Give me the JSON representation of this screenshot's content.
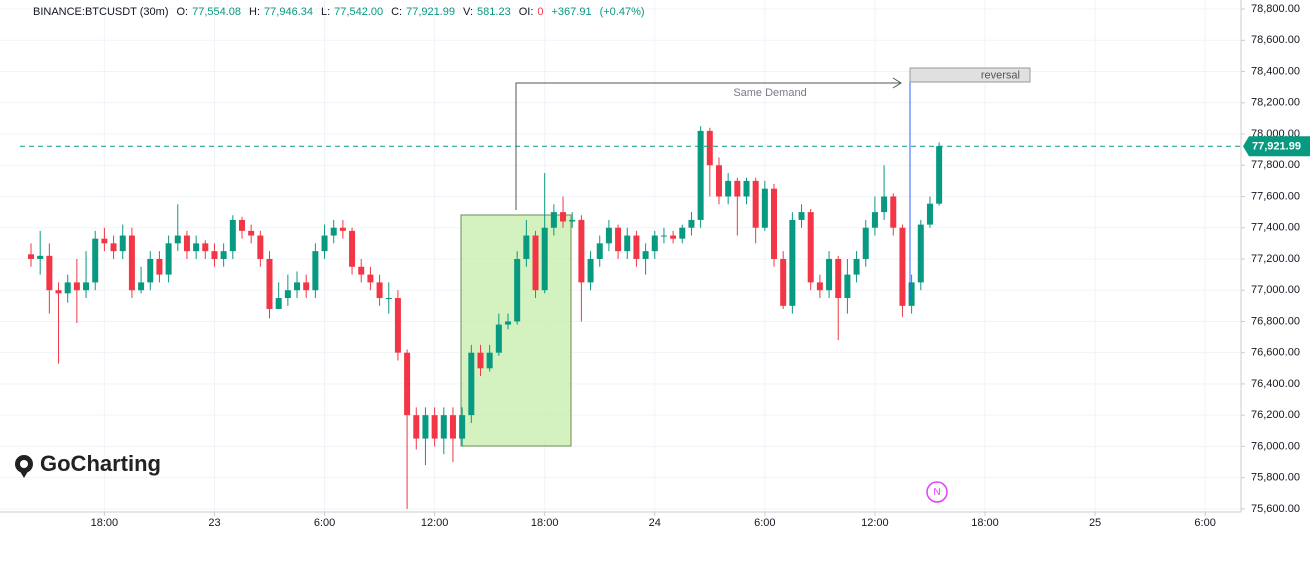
{
  "chart_data": {
    "type": "candlestick",
    "title": "BINANCE:BTCUSDT (30m)",
    "legend": [
      {
        "label": "O:",
        "value": "77,554.08"
      },
      {
        "label": "H:",
        "value": "77,946.34"
      },
      {
        "label": "L:",
        "value": "77,542.00"
      },
      {
        "label": "C:",
        "value": "77,921.99"
      },
      {
        "label": "V:",
        "value": "581.23"
      },
      {
        "label": "OI:",
        "value": "0"
      },
      {
        "label": "",
        "value": "+367.91"
      },
      {
        "label": "",
        "value": "(+0.47%)"
      }
    ],
    "up_color": "#089981",
    "down_color": "#f23645",
    "open": [
      77230,
      77200,
      77220,
      77000,
      76980,
      77050,
      77000,
      77050,
      77330,
      77300,
      77250,
      77350,
      77000,
      77050,
      77200,
      77100,
      77300,
      77350,
      77250,
      77300,
      77250,
      77200,
      77250,
      77450,
      77380,
      77350,
      77200,
      76880,
      76950,
      77000,
      77050,
      77000,
      77250,
      77350,
      77400,
      77380,
      77150,
      77100,
      77050,
      76950,
      76950,
      76600,
      76200,
      76050,
      76200,
      76050,
      76200,
      76050,
      76200,
      76600,
      76500,
      76600,
      76780,
      76800,
      77200,
      77350,
      77000,
      77400,
      77500,
      77440,
      77450,
      77050,
      77200,
      77300,
      77400,
      77250,
      77350,
      77200,
      77250,
      77350,
      77350,
      77330,
      77400,
      77450,
      78020,
      77800,
      77600,
      77700,
      77600,
      77700,
      77400,
      77650,
      77200,
      76900,
      77450,
      77500,
      77050,
      77000,
      77200,
      76950,
      77100,
      77200,
      77400,
      77500,
      77600,
      77400,
      76900,
      77050,
      77420,
      77554.08
    ],
    "high": [
      77300,
      77380,
      77300,
      77050,
      77100,
      77200,
      77250,
      77380,
      77400,
      77350,
      77420,
      77400,
      77150,
      77250,
      77250,
      77350,
      77550,
      77380,
      77350,
      77320,
      77300,
      77300,
      77480,
      77470,
      77420,
      77380,
      77250,
      77050,
      77100,
      77120,
      77100,
      77300,
      77420,
      77450,
      77450,
      77400,
      77200,
      77150,
      77100,
      77050,
      77000,
      76620,
      76250,
      76250,
      76250,
      76250,
      76250,
      76250,
      76650,
      76650,
      76650,
      76850,
      76850,
      77250,
      77450,
      77380,
      77750,
      77550,
      77600,
      77500,
      77480,
      77250,
      77350,
      77450,
      77420,
      77400,
      77380,
      77300,
      77380,
      77400,
      77380,
      77420,
      77500,
      78050,
      78040,
      77850,
      77750,
      77720,
      77720,
      77720,
      77700,
      77680,
      77250,
      77500,
      77550,
      77520,
      77100,
      77250,
      77220,
      77200,
      77250,
      77450,
      77600,
      77800,
      77620,
      77420,
      77100,
      77450,
      77600,
      77946.34
    ],
    "low": [
      77150,
      77100,
      76850,
      76530,
      76920,
      76790,
      76950,
      77000,
      77250,
      77200,
      77200,
      76950,
      76980,
      77000,
      77050,
      77050,
      77250,
      77200,
      77200,
      77200,
      77150,
      77150,
      77200,
      77330,
      77300,
      77150,
      76820,
      76880,
      76900,
      76950,
      76950,
      76950,
      77200,
      77300,
      77330,
      77100,
      77050,
      77000,
      76900,
      76850,
      76550,
      75600,
      75980,
      75880,
      76000,
      75950,
      75900,
      76000,
      76150,
      76450,
      76480,
      76580,
      76750,
      76780,
      77150,
      76950,
      76980,
      77350,
      77400,
      77400,
      76800,
      77000,
      77150,
      77250,
      77200,
      77200,
      77150,
      77100,
      77200,
      77300,
      77300,
      77300,
      77350,
      77400,
      77600,
      77550,
      77550,
      77350,
      77550,
      77300,
      77380,
      77150,
      76880,
      76850,
      77400,
      77000,
      76950,
      76950,
      76680,
      76850,
      77050,
      77150,
      77350,
      77450,
      77350,
      76830,
      76850,
      77000,
      77400,
      77542
    ],
    "close": [
      77200,
      77220,
      77000,
      76980,
      77050,
      77000,
      77050,
      77330,
      77300,
      77250,
      77350,
      77000,
      77050,
      77200,
      77100,
      77300,
      77350,
      77250,
      77300,
      77250,
      77200,
      77250,
      77450,
      77380,
      77350,
      77200,
      76880,
      76950,
      77000,
      77050,
      77000,
      77250,
      77350,
      77400,
      77380,
      77150,
      77100,
      77050,
      76950,
      76950,
      76600,
      76200,
      76050,
      76200,
      76050,
      76200,
      76050,
      76200,
      76600,
      76500,
      76600,
      76780,
      76800,
      77200,
      77350,
      77000,
      77400,
      77500,
      77440,
      77450,
      77050,
      77200,
      77300,
      77400,
      77250,
      77350,
      77200,
      77250,
      77350,
      77350,
      77330,
      77400,
      77450,
      78020,
      77800,
      77600,
      77700,
      77600,
      77700,
      77400,
      77650,
      77200,
      76900,
      77450,
      77500,
      77050,
      77000,
      77200,
      76950,
      77100,
      77200,
      77400,
      77500,
      77600,
      77400,
      76900,
      77050,
      77420,
      77554,
      77921.99
    ],
    "last_price": {
      "value": 77921.99,
      "label": "77,921.99"
    },
    "xlim": [
      -1.2,
      131.8
    ],
    "xticks": [
      {
        "value": 8,
        "label": "18:00"
      },
      {
        "value": 20,
        "label": "23"
      },
      {
        "value": 32,
        "label": "6:00"
      },
      {
        "value": 44,
        "label": "12:00"
      },
      {
        "value": 56,
        "label": "18:00"
      },
      {
        "value": 68,
        "label": "24"
      },
      {
        "value": 80,
        "label": "6:00"
      },
      {
        "value": 92,
        "label": "12:00"
      },
      {
        "value": 104,
        "label": "18:00"
      },
      {
        "value": 116,
        "label": "25"
      },
      {
        "value": 128,
        "label": "6:00"
      }
    ],
    "ylim": [
      75580,
      78858
    ],
    "yticks": [
      {
        "value": 75600,
        "label": "75,600.00"
      },
      {
        "value": 75800,
        "label": "75,800.00"
      },
      {
        "value": 76000,
        "label": "76,000.00"
      },
      {
        "value": 76200,
        "label": "76,200.00"
      },
      {
        "value": 76400,
        "label": "76,400.00"
      },
      {
        "value": 76600,
        "label": "76,600.00"
      },
      {
        "value": 76800,
        "label": "76,800.00"
      },
      {
        "value": 77000,
        "label": "77,000.00"
      },
      {
        "value": 77200,
        "label": "77,200.00"
      },
      {
        "value": 77400,
        "label": "77,400.00"
      },
      {
        "value": 77600,
        "label": "77,600.00"
      },
      {
        "value": 77800,
        "label": "77,800.00"
      },
      {
        "value": 78000,
        "label": "78,000.00"
      },
      {
        "value": 78200,
        "label": "78,200.00"
      },
      {
        "value": 78400,
        "label": "78,400.00"
      },
      {
        "value": 78600,
        "label": "78,600.00"
      },
      {
        "value": 78800,
        "label": "78,800.00"
      }
    ],
    "grid": true,
    "annotations": [
      "Same Demand",
      "reversal"
    ],
    "watermark": "GoCharting",
    "marker": "N"
  }
}
